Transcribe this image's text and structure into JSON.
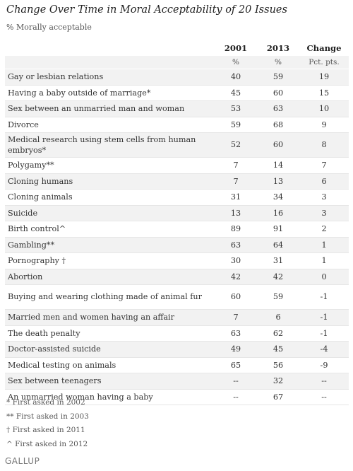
{
  "title": "Change Over Time in Moral Acceptability of 20 Issues",
  "subtitle": "% Morally acceptable",
  "chart_data": {
    "type": "table",
    "columns": [
      "2001",
      "2013",
      "Change"
    ],
    "units": [
      "%",
      "%",
      "Pct. pts."
    ],
    "rows": [
      {
        "issue": "Gay or lesbian relations",
        "y2001": "40",
        "y2013": "59",
        "change": "19"
      },
      {
        "issue": "Having a baby outside of marriage*",
        "y2001": "45",
        "y2013": "60",
        "change": "15"
      },
      {
        "issue": "Sex between an unmarried man and woman",
        "y2001": "53",
        "y2013": "63",
        "change": "10"
      },
      {
        "issue": "Divorce",
        "y2001": "59",
        "y2013": "68",
        "change": "9"
      },
      {
        "issue": "Medical research using stem cells from human embryos*",
        "y2001": "52",
        "y2013": "60",
        "change": "8"
      },
      {
        "issue": "Polygamy**",
        "y2001": "7",
        "y2013": "14",
        "change": "7"
      },
      {
        "issue": "Cloning humans",
        "y2001": "7",
        "y2013": "13",
        "change": "6"
      },
      {
        "issue": "Cloning animals",
        "y2001": "31",
        "y2013": "34",
        "change": "3"
      },
      {
        "issue": "Suicide",
        "y2001": "13",
        "y2013": "16",
        "change": "3"
      },
      {
        "issue": "Birth control^",
        "y2001": "89",
        "y2013": "91",
        "change": "2"
      },
      {
        "issue": "Gambling**",
        "y2001": "63",
        "y2013": "64",
        "change": "1"
      },
      {
        "issue": "Pornography †",
        "y2001": "30",
        "y2013": "31",
        "change": "1"
      },
      {
        "issue": "Abortion",
        "y2001": "42",
        "y2013": "42",
        "change": "0"
      },
      {
        "issue": "Buying and wearing clothing made of animal fur",
        "y2001": "60",
        "y2013": "59",
        "change": "-1"
      },
      {
        "issue": "Married men and women having an affair",
        "y2001": "7",
        "y2013": "6",
        "change": "-1"
      },
      {
        "issue": "The death penalty",
        "y2001": "63",
        "y2013": "62",
        "change": "-1"
      },
      {
        "issue": "Doctor-assisted suicide",
        "y2001": "49",
        "y2013": "45",
        "change": "-4"
      },
      {
        "issue": "Medical testing on animals",
        "y2001": "65",
        "y2013": "56",
        "change": "-9"
      },
      {
        "issue": "Sex between teenagers",
        "y2001": "--",
        "y2013": "32",
        "change": "--"
      },
      {
        "issue": "An unmarried woman having a baby",
        "y2001": "--",
        "y2013": "67",
        "change": "--"
      }
    ]
  },
  "footnotes": [
    "*  First asked in 2002",
    "** First asked in 2003",
    "†  First asked in 2011",
    "^  First asked in 2012"
  ],
  "source": "GALLUP"
}
